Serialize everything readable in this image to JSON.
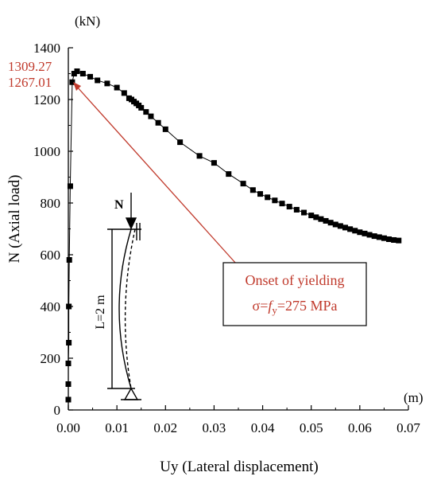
{
  "chart_data": {
    "type": "scatter",
    "xlabel": "Uy (Lateral displacement)",
    "ylabel": "N (Axial load)",
    "x_unit": "(m)",
    "y_unit": "(kN)",
    "xlim": [
      0,
      0.07
    ],
    "ylim": [
      0,
      1400
    ],
    "xticks": [
      "0.00",
      "0.01",
      "0.02",
      "0.03",
      "0.04",
      "0.05",
      "0.06",
      "0.07"
    ],
    "yticks": [
      "0",
      "200",
      "400",
      "600",
      "800",
      "1000",
      "1200",
      "1400"
    ],
    "value_labels": [
      "1309.27",
      "1267.01"
    ],
    "series": [
      {
        "marker": "square",
        "color": "#000000",
        "points": [
          [
            0,
            40
          ],
          [
            0,
            100
          ],
          [
            0,
            180
          ],
          [
            0.0001,
            260
          ],
          [
            0.0001,
            400
          ],
          [
            0.0002,
            580
          ],
          [
            0.0004,
            865
          ],
          [
            0.0008,
            1267.01
          ],
          [
            0.0012,
            1300
          ],
          [
            0.0018,
            1309.27
          ],
          [
            0.003,
            1300
          ],
          [
            0.0045,
            1288
          ],
          [
            0.006,
            1274
          ],
          [
            0.008,
            1262
          ],
          [
            0.01,
            1246
          ],
          [
            0.0115,
            1225
          ],
          [
            0.0125,
            1205
          ],
          [
            0.013,
            1200
          ],
          [
            0.0135,
            1192
          ],
          [
            0.014,
            1185
          ],
          [
            0.0145,
            1177
          ],
          [
            0.015,
            1168
          ],
          [
            0.016,
            1152
          ],
          [
            0.017,
            1135
          ],
          [
            0.0185,
            1110
          ],
          [
            0.02,
            1085
          ],
          [
            0.023,
            1035
          ],
          [
            0.027,
            982
          ],
          [
            0.03,
            955
          ],
          [
            0.033,
            912
          ],
          [
            0.036,
            875
          ],
          [
            0.038,
            850
          ],
          [
            0.0395,
            835
          ],
          [
            0.041,
            822
          ],
          [
            0.0425,
            810
          ],
          [
            0.044,
            798
          ],
          [
            0.0455,
            786
          ],
          [
            0.047,
            774
          ],
          [
            0.0485,
            763
          ],
          [
            0.05,
            752
          ],
          [
            0.051,
            745
          ],
          [
            0.052,
            738
          ],
          [
            0.053,
            731
          ],
          [
            0.054,
            724
          ],
          [
            0.055,
            717
          ],
          [
            0.056,
            711
          ],
          [
            0.057,
            705
          ],
          [
            0.058,
            699
          ],
          [
            0.059,
            693
          ],
          [
            0.06,
            687
          ],
          [
            0.061,
            682
          ],
          [
            0.062,
            677
          ],
          [
            0.063,
            672
          ],
          [
            0.064,
            668
          ],
          [
            0.065,
            664
          ],
          [
            0.066,
            660
          ],
          [
            0.067,
            657
          ],
          [
            0.068,
            655
          ]
        ]
      }
    ],
    "annotation": {
      "line1": "Onset of yielding",
      "line2_prefix": "σ=",
      "line2_italic": "f",
      "line2_sub": "y",
      "line2_suffix": "=275 MPa",
      "points_to": [
        0.0008,
        1267.01
      ]
    },
    "inset": {
      "load_label": "N",
      "length_label": "L=2 m"
    },
    "colors": {
      "annotation": "#c0392b",
      "data": "#000000"
    }
  }
}
